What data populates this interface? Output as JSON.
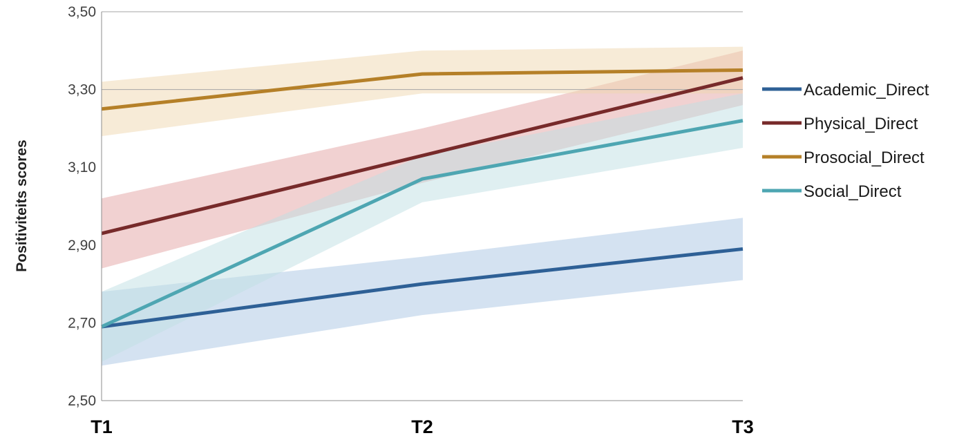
{
  "chart_data": {
    "type": "line",
    "title": "",
    "xlabel": "",
    "ylabel": "Positiviteits scores",
    "categories": [
      "T1",
      "T2",
      "T3"
    ],
    "ylim": [
      2.5,
      3.5
    ],
    "yticks": [
      "2,50",
      "2,70",
      "2,90",
      "3,10",
      "3,30",
      "3,50"
    ],
    "ytick_values": [
      2.5,
      2.7,
      2.9,
      3.1,
      3.3,
      3.5
    ],
    "grid": "horizontal at 3,30 and 3,50",
    "legend_position": "right",
    "series": [
      {
        "name": "Academic_Direct",
        "color": "#2e6096",
        "band_color": "#a9c6e3",
        "values": [
          2.69,
          2.8,
          2.89
        ],
        "lower": [
          2.59,
          2.72,
          2.81
        ],
        "upper": [
          2.78,
          2.87,
          2.97
        ]
      },
      {
        "name": "Physical_Direct",
        "color": "#772a2a",
        "band_color": "#e3a3a3",
        "values": [
          2.93,
          3.13,
          3.33
        ],
        "lower": [
          2.84,
          3.06,
          3.26
        ],
        "upper": [
          3.02,
          3.2,
          3.4
        ]
      },
      {
        "name": "Prosocial_Direct",
        "color": "#b58028",
        "band_color": "#f0d8b0",
        "values": [
          3.25,
          3.34,
          3.35
        ],
        "lower": [
          3.18,
          3.29,
          3.29
        ],
        "upper": [
          3.32,
          3.4,
          3.41
        ]
      },
      {
        "name": "Social_Direct",
        "color": "#4ea6b2",
        "band_color": "#bfe0e4",
        "values": [
          2.69,
          3.07,
          3.22
        ],
        "lower": [
          2.6,
          3.01,
          3.15
        ],
        "upper": [
          2.78,
          3.13,
          3.29
        ]
      }
    ]
  }
}
